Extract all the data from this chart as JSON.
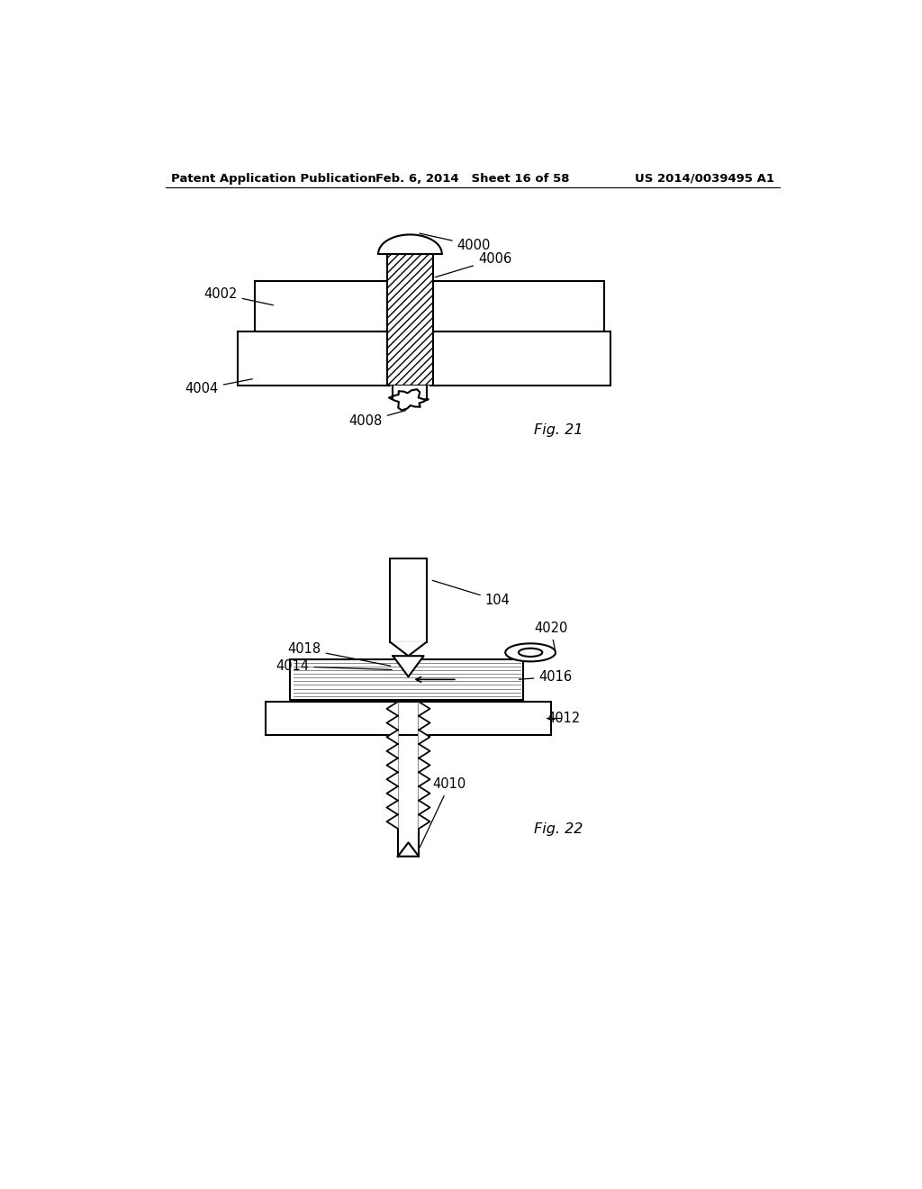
{
  "background_color": "#ffffff",
  "header_left": "Patent Application Publication",
  "header_mid": "Feb. 6, 2014   Sheet 16 of 58",
  "header_right": "US 2014/0039495 A1",
  "fig21_label": "Fig. 21",
  "fig22_label": "Fig. 22",
  "line_color": "#000000",
  "line_width": 1.5
}
